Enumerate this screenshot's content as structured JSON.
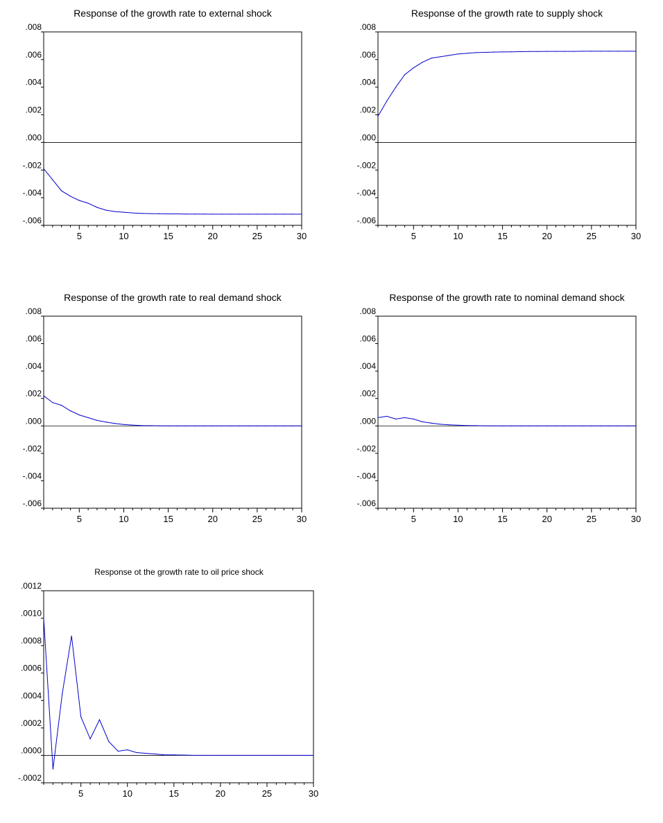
{
  "chart_data": [
    {
      "type": "line",
      "title": "Response of the growth rate to external shock",
      "xlabel": "",
      "ylabel": "",
      "xlim": [
        1,
        30
      ],
      "ylim": [
        -0.006,
        0.008
      ],
      "x_ticks": [
        5,
        10,
        15,
        20,
        25,
        30
      ],
      "y_ticks": [
        ".008",
        ".006",
        ".004",
        ".002",
        ".000",
        "-.002",
        "-.004",
        "-.006"
      ],
      "y_tick_values": [
        0.008,
        0.006,
        0.004,
        0.002,
        0.0,
        -0.002,
        -0.004,
        -0.006
      ],
      "zero_line": true,
      "color": "#0000cc",
      "x": [
        1,
        2,
        3,
        4,
        5,
        6,
        7,
        8,
        9,
        10,
        11,
        12,
        13,
        14,
        15,
        16,
        17,
        18,
        19,
        20,
        21,
        22,
        23,
        24,
        25,
        26,
        27,
        28,
        29,
        30
      ],
      "values": [
        -0.0019,
        -0.0027,
        -0.0035,
        -0.0039,
        -0.0042,
        -0.0044,
        -0.0047,
        -0.0049,
        -0.005,
        -0.00505,
        -0.0051,
        -0.00513,
        -0.00515,
        -0.00516,
        -0.00517,
        -0.00517,
        -0.00518,
        -0.00518,
        -0.00518,
        -0.00519,
        -0.00519,
        -0.00519,
        -0.00519,
        -0.00519,
        -0.00519,
        -0.00519,
        -0.00519,
        -0.00519,
        -0.00519,
        -0.00519
      ]
    },
    {
      "type": "line",
      "title": "Response of the growth rate to supply shock",
      "xlabel": "",
      "ylabel": "",
      "xlim": [
        1,
        30
      ],
      "ylim": [
        -0.006,
        0.008
      ],
      "x_ticks": [
        5,
        10,
        15,
        20,
        25,
        30
      ],
      "y_ticks": [
        ".008",
        ".006",
        ".004",
        ".002",
        ".000",
        "-.002",
        "-.004",
        "-.006"
      ],
      "y_tick_values": [
        0.008,
        0.006,
        0.004,
        0.002,
        0.0,
        -0.002,
        -0.004,
        -0.006
      ],
      "zero_line": true,
      "color": "#0000cc",
      "x": [
        1,
        2,
        3,
        4,
        5,
        6,
        7,
        8,
        9,
        10,
        11,
        12,
        13,
        14,
        15,
        16,
        17,
        18,
        19,
        20,
        21,
        22,
        23,
        24,
        25,
        26,
        27,
        28,
        29,
        30
      ],
      "values": [
        0.0019,
        0.003,
        0.004,
        0.0049,
        0.0054,
        0.0058,
        0.0061,
        0.0062,
        0.0063,
        0.0064,
        0.00645,
        0.0065,
        0.00652,
        0.00654,
        0.00655,
        0.00656,
        0.00657,
        0.00658,
        0.00658,
        0.00659,
        0.00659,
        0.00659,
        0.00659,
        0.0066,
        0.0066,
        0.0066,
        0.0066,
        0.0066,
        0.0066,
        0.0066
      ]
    },
    {
      "type": "line",
      "title": "Response of the growth rate to real demand shock",
      "xlabel": "",
      "ylabel": "",
      "xlim": [
        1,
        30
      ],
      "ylim": [
        -0.006,
        0.008
      ],
      "x_ticks": [
        5,
        10,
        15,
        20,
        25,
        30
      ],
      "y_ticks": [
        ".008",
        ".006",
        ".004",
        ".002",
        ".000",
        "-.002",
        "-.004",
        "-.006"
      ],
      "y_tick_values": [
        0.008,
        0.006,
        0.004,
        0.002,
        0.0,
        -0.002,
        -0.004,
        -0.006
      ],
      "zero_line": true,
      "color": "#0000cc",
      "x": [
        1,
        2,
        3,
        4,
        5,
        6,
        7,
        8,
        9,
        10,
        11,
        12,
        13,
        14,
        15,
        16,
        17,
        18,
        19,
        20,
        21,
        22,
        23,
        24,
        25,
        26,
        27,
        28,
        29,
        30
      ],
      "values": [
        0.0022,
        0.0017,
        0.0015,
        0.0011,
        0.0008,
        0.0006,
        0.0004,
        0.00028,
        0.00018,
        0.0001,
        6e-05,
        3e-05,
        2e-05,
        1e-05,
        5e-06,
        0,
        0,
        0,
        0,
        0,
        0,
        0,
        0,
        0,
        0,
        0,
        0,
        0,
        0,
        0
      ]
    },
    {
      "type": "line",
      "title": "Response of the growth rate to nominal demand shock",
      "xlabel": "",
      "ylabel": "",
      "xlim": [
        1,
        30
      ],
      "ylim": [
        -0.006,
        0.008
      ],
      "x_ticks": [
        5,
        10,
        15,
        20,
        25,
        30
      ],
      "y_ticks": [
        ".008",
        ".006",
        ".004",
        ".002",
        ".000",
        "-.002",
        "-.004",
        "-.006"
      ],
      "y_tick_values": [
        0.008,
        0.006,
        0.004,
        0.002,
        0.0,
        -0.002,
        -0.004,
        -0.006
      ],
      "zero_line": true,
      "color": "#0000cc",
      "x": [
        1,
        2,
        3,
        4,
        5,
        6,
        7,
        8,
        9,
        10,
        11,
        12,
        13,
        14,
        15,
        16,
        17,
        18,
        19,
        20,
        21,
        22,
        23,
        24,
        25,
        26,
        27,
        28,
        29,
        30
      ],
      "values": [
        0.0006,
        0.0007,
        0.0005,
        0.0006,
        0.0005,
        0.0003,
        0.0002,
        0.00012,
        8e-05,
        5e-05,
        3e-05,
        2e-05,
        1e-05,
        5e-06,
        0,
        0,
        0,
        0,
        0,
        0,
        0,
        0,
        0,
        0,
        0,
        0,
        0,
        0,
        0,
        0
      ]
    },
    {
      "type": "line",
      "title": "Response ot the growth rate to oil price shock",
      "xlabel": "",
      "ylabel": "",
      "xlim": [
        1,
        30
      ],
      "ylim": [
        -0.0002,
        0.0012
      ],
      "x_ticks": [
        5,
        10,
        15,
        20,
        25,
        30
      ],
      "y_ticks": [
        ".0012",
        ".0010",
        ".0008",
        ".0006",
        ".0004",
        ".0002",
        ".0000",
        "-.0002"
      ],
      "y_tick_values": [
        0.0012,
        0.001,
        0.0008,
        0.0006,
        0.0004,
        0.0002,
        0.0,
        -0.0002
      ],
      "zero_line": true,
      "color": "#0000cc",
      "x": [
        1,
        2,
        3,
        4,
        5,
        6,
        7,
        8,
        9,
        10,
        11,
        12,
        13,
        14,
        15,
        16,
        17,
        18,
        19,
        20,
        21,
        22,
        23,
        24,
        25,
        26,
        27,
        28,
        29,
        30
      ],
      "values": [
        0.001,
        -0.0001,
        0.00045,
        0.00087,
        0.00028,
        0.00012,
        0.00026,
        0.0001,
        3e-05,
        4e-05,
        2e-05,
        1.5e-05,
        1e-05,
        3e-06,
        3e-06,
        2e-06,
        0,
        0,
        0,
        0,
        0,
        0,
        0,
        0,
        0,
        0,
        0,
        0,
        0,
        0
      ]
    }
  ]
}
